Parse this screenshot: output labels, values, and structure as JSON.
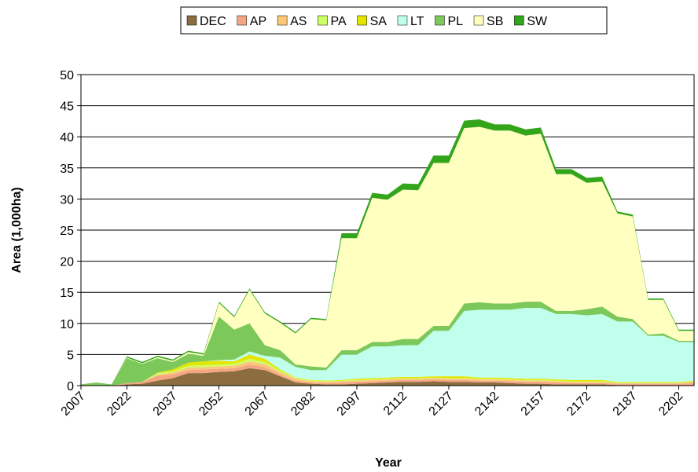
{
  "chart_data": {
    "type": "stacked_area",
    "x_label": "Year",
    "y_label": "Area (1,000ha)",
    "x": [
      2007,
      2012,
      2017,
      2022,
      2027,
      2032,
      2037,
      2042,
      2047,
      2052,
      2057,
      2062,
      2067,
      2072,
      2077,
      2082,
      2087,
      2092,
      2097,
      2102,
      2107,
      2112,
      2117,
      2122,
      2127,
      2132,
      2137,
      2142,
      2147,
      2152,
      2157,
      2162,
      2167,
      2172,
      2177,
      2182,
      2187,
      2192,
      2197,
      2202,
      2207
    ],
    "xlim": [
      2007,
      2207
    ],
    "xticks": [
      2007,
      2022,
      2037,
      2052,
      2067,
      2082,
      2097,
      2112,
      2127,
      2142,
      2157,
      2172,
      2187,
      2202
    ],
    "ylim": [
      0,
      50
    ],
    "yticks": [
      0,
      5,
      10,
      15,
      20,
      25,
      30,
      35,
      40,
      45,
      50
    ],
    "grid": true,
    "legend": "top",
    "series": [
      {
        "name": "DEC",
        "color": "#8b6d3f",
        "values": [
          0,
          0,
          0,
          0.2,
          0.3,
          0.8,
          1.2,
          2.0,
          2.0,
          2.2,
          2.3,
          2.8,
          2.5,
          1.5,
          0.5,
          0.3,
          0.2,
          0.2,
          0.3,
          0.4,
          0.5,
          0.6,
          0.6,
          0.7,
          0.6,
          0.6,
          0.5,
          0.5,
          0.4,
          0.3,
          0.3,
          0.2,
          0.2,
          0.2,
          0.2,
          0.1,
          0.1,
          0.1,
          0.1,
          0.1,
          0.1
        ]
      },
      {
        "name": "AP",
        "color": "#f4a582",
        "values": [
          0,
          0,
          0,
          0.2,
          0.3,
          0.8,
          0.6,
          0.5,
          0.6,
          0.5,
          0.5,
          0.6,
          0.5,
          0.3,
          0.3,
          0.2,
          0.2,
          0.3,
          0.3,
          0.3,
          0.3,
          0.3,
          0.3,
          0.3,
          0.3,
          0.3,
          0.3,
          0.3,
          0.3,
          0.3,
          0.3,
          0.3,
          0.2,
          0.2,
          0.2,
          0.2,
          0.2,
          0.2,
          0.2,
          0.2,
          0.3
        ]
      },
      {
        "name": "AS",
        "color": "#fac878",
        "values": [
          0,
          0,
          0,
          0,
          0,
          0.2,
          0.3,
          0.4,
          0.4,
          0.4,
          0.4,
          0.5,
          0.5,
          0.4,
          0.3,
          0.2,
          0.2,
          0.2,
          0.2,
          0.2,
          0.2,
          0.2,
          0.2,
          0.2,
          0.2,
          0.2,
          0.2,
          0.2,
          0.2,
          0.2,
          0.2,
          0.2,
          0.2,
          0.2,
          0.2,
          0.1,
          0.1,
          0.1,
          0.1,
          0.1,
          0.2
        ]
      },
      {
        "name": "PA",
        "color": "#ccff66",
        "values": [
          0,
          0,
          0,
          0,
          0,
          0.2,
          0.2,
          0.3,
          0.3,
          0.3,
          0.3,
          0.4,
          0.3,
          0.2,
          0.1,
          0.1,
          0.1,
          0.1,
          0.1,
          0.1,
          0.1,
          0.1,
          0.1,
          0.1,
          0.1,
          0.1,
          0.1,
          0.1,
          0.1,
          0.1,
          0.1,
          0.1,
          0.1,
          0.1,
          0.1,
          0.1,
          0.1,
          0.1,
          0.1,
          0.1,
          0.1
        ]
      },
      {
        "name": "SA",
        "color": "#e5e500",
        "values": [
          0,
          0,
          0,
          0,
          0,
          0.1,
          0.3,
          0.5,
          0.6,
          0.6,
          0.4,
          0.7,
          0.5,
          0.2,
          0.1,
          0.1,
          0.1,
          0.1,
          0.2,
          0.2,
          0.2,
          0.2,
          0.2,
          0.2,
          0.3,
          0.3,
          0.2,
          0.2,
          0.2,
          0.2,
          0.2,
          0.2,
          0.2,
          0.2,
          0.2,
          0.1,
          0.1,
          0.1,
          0.1,
          0.1,
          0.1
        ]
      },
      {
        "name": "LT",
        "color": "#c0ffec",
        "values": [
          0,
          0,
          0,
          0,
          0,
          0,
          0,
          0,
          0,
          0.1,
          0.3,
          0.5,
          0.5,
          1.9,
          1.7,
          1.6,
          1.7,
          4.1,
          3.9,
          5.1,
          5.0,
          5.1,
          5.1,
          7.3,
          7.3,
          10.5,
          10.9,
          10.9,
          11.0,
          11.4,
          11.4,
          10.5,
          10.6,
          10.4,
          10.6,
          9.7,
          9.7,
          7.4,
          7.4,
          6.4,
          6.2
        ]
      },
      {
        "name": "PL",
        "color": "#7dc85a",
        "values": [
          0.2,
          0.5,
          0.2,
          4.0,
          2.9,
          2.3,
          1.2,
          1.4,
          0.9,
          7.0,
          4.8,
          4.5,
          1.7,
          1.2,
          0.4,
          0.6,
          0.4,
          0.7,
          0.7,
          0.7,
          0.7,
          1.0,
          1.0,
          0.8,
          0.8,
          1.2,
          1.2,
          1.0,
          1.0,
          1.0,
          1.0,
          0.5,
          0.5,
          1.0,
          1.2,
          0.8,
          0.4,
          0.2,
          0.4,
          0.2,
          0.2
        ]
      },
      {
        "name": "SB",
        "color": "#ffffc0",
        "values": [
          0,
          0,
          0,
          0.1,
          0.1,
          0.2,
          0.2,
          0.3,
          0.2,
          2.2,
          2.0,
          5.4,
          5.1,
          4.4,
          5.0,
          7.6,
          7.6,
          18.0,
          18.0,
          23.2,
          22.9,
          24.0,
          23.9,
          26.2,
          26.2,
          28.2,
          28.2,
          27.8,
          27.8,
          26.7,
          27.0,
          22.0,
          22.0,
          20.3,
          20.1,
          16.6,
          16.5,
          5.6,
          5.4,
          1.6,
          1.6
        ]
      },
      {
        "name": "SW",
        "color": "#33a51a",
        "values": [
          0,
          0,
          0,
          0.2,
          0.2,
          0.2,
          0.2,
          0.2,
          0.2,
          0.2,
          0.2,
          0.2,
          0.2,
          0.2,
          0.2,
          0.2,
          0.2,
          0.8,
          0.8,
          0.8,
          0.8,
          1.0,
          1.0,
          1.2,
          1.2,
          1.2,
          1.2,
          1.0,
          1.0,
          1.0,
          1.0,
          0.8,
          0.8,
          0.8,
          0.8,
          0.3,
          0.3,
          0.2,
          0.2,
          0.2,
          0.2
        ]
      }
    ]
  }
}
